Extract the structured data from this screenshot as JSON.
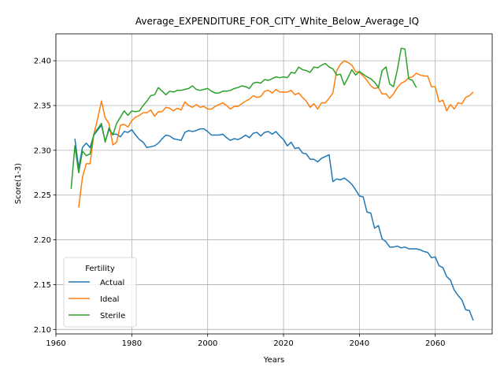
{
  "chart_data": {
    "type": "line",
    "title": "Average_EXPENDITURE_FOR_CITY_White_Below_Average_IQ",
    "xlabel": "Years",
    "ylabel": "Score(1-3)",
    "xlim": [
      1960,
      2075
    ],
    "ylim": [
      2.095,
      2.43
    ],
    "xticks": [
      1960,
      1980,
      2000,
      2020,
      2040,
      2060
    ],
    "yticks": [
      2.1,
      2.15,
      2.2,
      2.25,
      2.3,
      2.35,
      2.4
    ],
    "ytick_labels": [
      "2.10",
      "2.15",
      "2.20",
      "2.25",
      "2.30",
      "2.35",
      "2.40"
    ],
    "grid": true,
    "legend": {
      "title": "Fertility",
      "position": "lower-left"
    },
    "series": [
      {
        "name": "Actual",
        "color": "#1f77b4",
        "x": [
          1965,
          1966,
          1967,
          1968,
          1969,
          1970,
          1972,
          1973,
          1974,
          1975,
          1976,
          1977,
          1978,
          1979,
          1980,
          1981,
          1982,
          1983,
          1984,
          1985,
          1986,
          1987,
          1988,
          1989,
          1990,
          1991,
          1992,
          1993,
          1994,
          1995,
          1996,
          1997,
          1998,
          1999,
          2000,
          2001,
          2002,
          2003,
          2004,
          2005,
          2006,
          2007,
          2008,
          2009,
          2010,
          2011,
          2012,
          2013,
          2014,
          2015,
          2016,
          2017,
          2018,
          2019,
          2020,
          2021,
          2022,
          2023,
          2024,
          2025,
          2026,
          2027,
          2028,
          2029,
          2030,
          2031,
          2032,
          2033,
          2034,
          2035,
          2036,
          2037,
          2038,
          2039,
          2040,
          2041,
          2042,
          2043,
          2044,
          2045,
          2046,
          2047,
          2048,
          2049,
          2050,
          2051,
          2052,
          2053,
          2054,
          2055,
          2056,
          2057,
          2058,
          2059,
          2060,
          2061,
          2062,
          2063,
          2064,
          2065,
          2066,
          2067,
          2068,
          2069,
          2070
        ],
        "values": [
          2.313,
          2.28,
          2.303,
          2.308,
          2.303,
          2.317,
          2.328,
          2.31,
          2.323,
          2.318,
          2.318,
          2.315,
          2.321,
          2.32,
          2.323,
          2.317,
          2.312,
          2.309,
          2.303,
          2.304,
          2.305,
          2.308,
          2.313,
          2.317,
          2.316,
          2.313,
          2.312,
          2.311,
          2.32,
          2.322,
          2.321,
          2.322,
          2.324,
          2.324,
          2.321,
          2.317,
          2.317,
          2.317,
          2.318,
          2.314,
          2.311,
          2.313,
          2.312,
          2.314,
          2.317,
          2.314,
          2.319,
          2.32,
          2.316,
          2.32,
          2.321,
          2.318,
          2.321,
          2.316,
          2.312,
          2.305,
          2.309,
          2.302,
          2.303,
          2.297,
          2.296,
          2.29,
          2.29,
          2.287,
          2.291,
          2.293,
          2.295,
          2.265,
          2.268,
          2.267,
          2.269,
          2.266,
          2.262,
          2.256,
          2.249,
          2.248,
          2.231,
          2.23,
          2.213,
          2.216,
          2.201,
          2.198,
          2.192,
          2.192,
          2.193,
          2.191,
          2.192,
          2.19,
          2.19,
          2.19,
          2.189,
          2.187,
          2.186,
          2.18,
          2.181,
          2.171,
          2.169,
          2.159,
          2.155,
          2.144,
          2.138,
          2.133,
          2.122,
          2.121,
          2.11
        ]
      },
      {
        "name": "Ideal",
        "color": "#ff7f0e",
        "x": [
          1966,
          1967,
          1968,
          1969,
          1970,
          1971,
          1972,
          1973,
          1974,
          1975,
          1976,
          1977,
          1978,
          1979,
          1980,
          1981,
          1982,
          1983,
          1984,
          1985,
          1986,
          1987,
          1988,
          1989,
          1990,
          1991,
          1992,
          1993,
          1994,
          1995,
          1996,
          1997,
          1998,
          1999,
          2000,
          2001,
          2002,
          2003,
          2004,
          2005,
          2006,
          2007,
          2008,
          2009,
          2010,
          2011,
          2012,
          2013,
          2014,
          2015,
          2016,
          2017,
          2018,
          2019,
          2020,
          2021,
          2022,
          2023,
          2024,
          2025,
          2026,
          2027,
          2028,
          2029,
          2030,
          2031,
          2032,
          2033,
          2034,
          2035,
          2036,
          2037,
          2038,
          2039,
          2040,
          2041,
          2042,
          2043,
          2044,
          2045,
          2046,
          2047,
          2048,
          2049,
          2050,
          2051,
          2052,
          2053,
          2054,
          2055,
          2056,
          2057,
          2058,
          2059,
          2060,
          2061,
          2062,
          2063,
          2064,
          2065,
          2066,
          2067,
          2068,
          2069,
          2070
        ],
        "values": [
          2.236,
          2.27,
          2.285,
          2.285,
          2.318,
          2.335,
          2.355,
          2.336,
          2.33,
          2.306,
          2.309,
          2.328,
          2.329,
          2.326,
          2.333,
          2.337,
          2.339,
          2.342,
          2.342,
          2.345,
          2.338,
          2.343,
          2.343,
          2.348,
          2.347,
          2.344,
          2.347,
          2.345,
          2.354,
          2.35,
          2.348,
          2.351,
          2.348,
          2.349,
          2.346,
          2.346,
          2.349,
          2.351,
          2.353,
          2.35,
          2.346,
          2.349,
          2.349,
          2.352,
          2.355,
          2.357,
          2.361,
          2.359,
          2.36,
          2.366,
          2.367,
          2.364,
          2.368,
          2.365,
          2.365,
          2.365,
          2.367,
          2.362,
          2.364,
          2.359,
          2.355,
          2.348,
          2.352,
          2.346,
          2.353,
          2.353,
          2.358,
          2.364,
          2.389,
          2.396,
          2.4,
          2.398,
          2.395,
          2.388,
          2.387,
          2.383,
          2.378,
          2.372,
          2.369,
          2.37,
          2.363,
          2.363,
          2.358,
          2.363,
          2.37,
          2.375,
          2.377,
          2.381,
          2.382,
          2.386,
          2.384,
          2.383,
          2.383,
          2.371,
          2.371,
          2.354,
          2.356,
          2.344,
          2.351,
          2.346,
          2.353,
          2.352,
          2.359,
          2.361,
          2.365
        ]
      },
      {
        "name": "Sterile",
        "color": "#2ca02c",
        "x": [
          1964,
          1965,
          1966,
          1967,
          1968,
          1969,
          1970,
          1971,
          1972,
          1973,
          1974,
          1975,
          1976,
          1977,
          1978,
          1979,
          1980,
          1981,
          1982,
          1983,
          1984,
          1985,
          1986,
          1987,
          1988,
          1989,
          1990,
          1991,
          1992,
          1993,
          1994,
          1995,
          1996,
          1997,
          1998,
          1999,
          2000,
          2001,
          2002,
          2003,
          2004,
          2005,
          2006,
          2007,
          2008,
          2009,
          2010,
          2011,
          2012,
          2013,
          2014,
          2015,
          2016,
          2017,
          2018,
          2019,
          2020,
          2021,
          2022,
          2023,
          2024,
          2025,
          2026,
          2027,
          2028,
          2029,
          2030,
          2031,
          2032,
          2033,
          2034,
          2035,
          2036,
          2037,
          2038,
          2039,
          2040,
          2041,
          2042,
          2043,
          2044,
          2045,
          2046,
          2047,
          2048,
          2049,
          2050,
          2051,
          2052,
          2053,
          2054,
          2055
        ],
        "values": [
          2.257,
          2.305,
          2.275,
          2.299,
          2.294,
          2.296,
          2.318,
          2.324,
          2.33,
          2.309,
          2.325,
          2.317,
          2.33,
          2.337,
          2.344,
          2.339,
          2.344,
          2.343,
          2.344,
          2.35,
          2.355,
          2.361,
          2.362,
          2.37,
          2.366,
          2.362,
          2.366,
          2.365,
          2.367,
          2.367,
          2.368,
          2.369,
          2.372,
          2.368,
          2.367,
          2.368,
          2.369,
          2.366,
          2.364,
          2.364,
          2.366,
          2.366,
          2.367,
          2.369,
          2.37,
          2.372,
          2.371,
          2.369,
          2.375,
          2.376,
          2.375,
          2.379,
          2.378,
          2.38,
          2.382,
          2.381,
          2.382,
          2.381,
          2.387,
          2.386,
          2.393,
          2.39,
          2.389,
          2.387,
          2.393,
          2.392,
          2.395,
          2.397,
          2.393,
          2.391,
          2.384,
          2.385,
          2.373,
          2.381,
          2.39,
          2.384,
          2.388,
          2.385,
          2.382,
          2.38,
          2.376,
          2.37,
          2.389,
          2.393,
          2.374,
          2.371,
          2.39,
          2.414,
          2.413,
          2.38,
          2.378,
          2.37
        ]
      }
    ]
  }
}
